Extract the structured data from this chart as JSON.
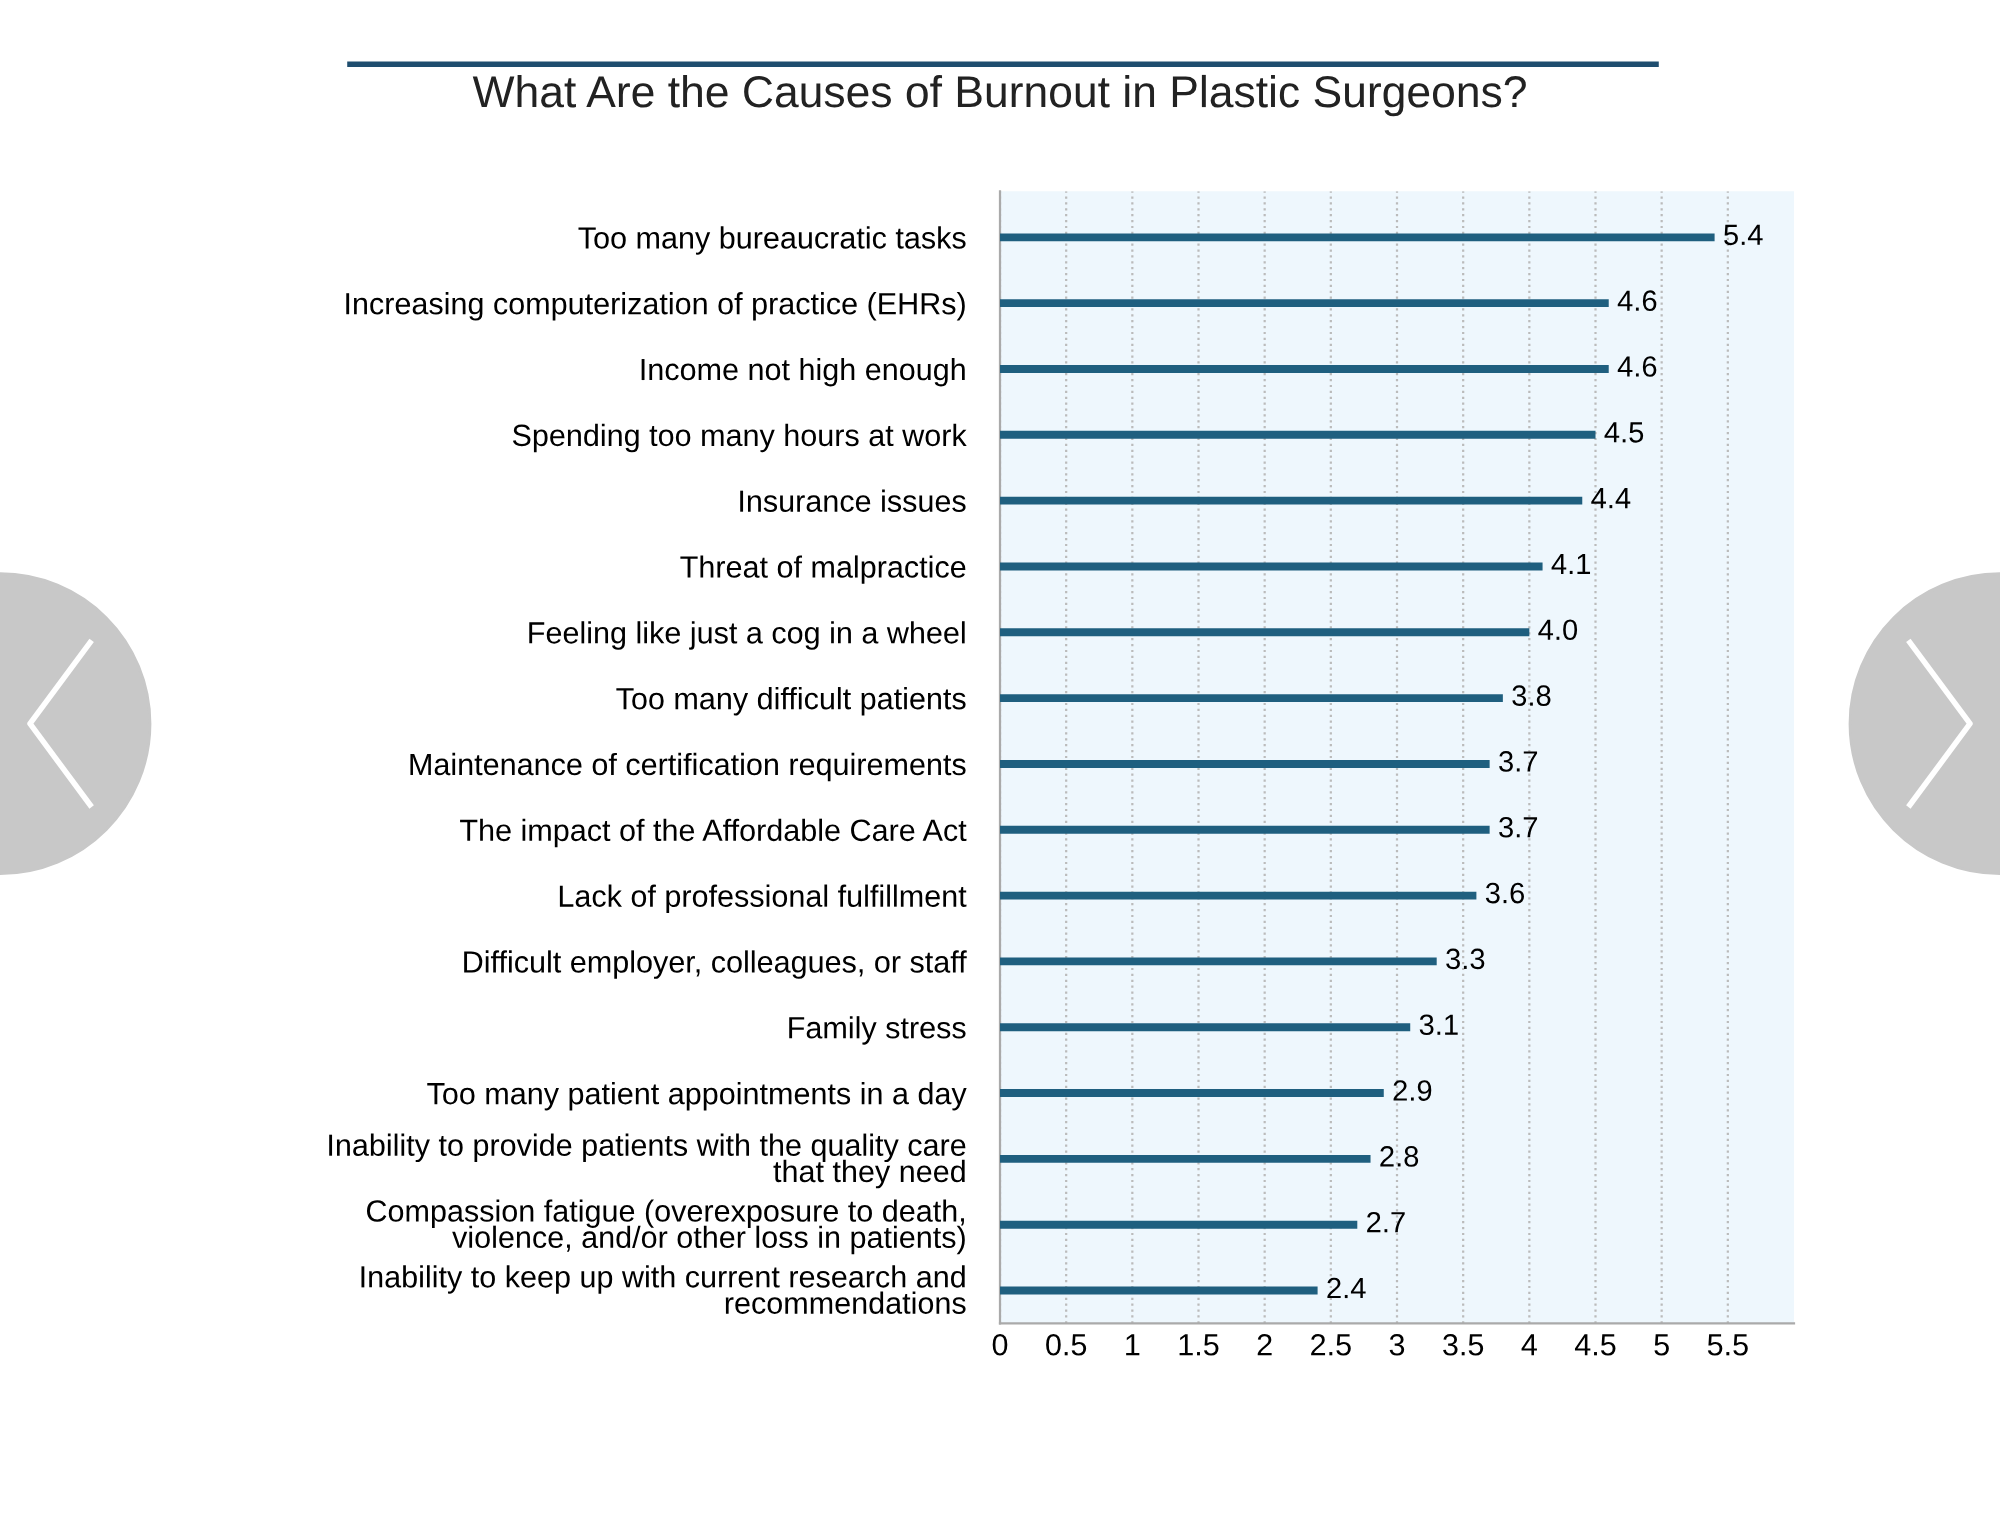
{
  "chart_data": {
    "type": "bar",
    "orientation": "horizontal",
    "title": "What Are the Causes of Burnout in Plastic Surgeons?",
    "categories": [
      "Too many bureaucratic tasks",
      "Increasing computerization of practice (EHRs)",
      "Income not high enough",
      "Spending too many hours at work",
      "Insurance issues",
      "Threat of malpractice",
      "Feeling like just a cog in a wheel",
      "Too many difficult patients",
      "Maintenance of certification requirements",
      "The impact of the Affordable Care Act",
      "Lack of professional fulfillment",
      "Difficult employer, colleagues, or staff",
      "Family stress",
      "Too many patient appointments in a day",
      "Inability to provide patients with the quality care\nthat they need",
      "Compassion fatigue (overexposure to death,\nviolence, and/or other loss in patients)",
      "Inability to keep up with current research and\nrecommendations"
    ],
    "values": [
      5.4,
      4.6,
      4.6,
      4.5,
      4.4,
      4.1,
      4.0,
      3.8,
      3.7,
      3.7,
      3.6,
      3.3,
      3.1,
      2.9,
      2.8,
      2.7,
      2.4
    ],
    "color": "#1f5f7f",
    "value_labels": [
      "5.4",
      "4.6",
      "4.6",
      "4.5",
      "4.4",
      "4.1",
      "4.0",
      "3.8",
      "3.7",
      "3.7",
      "3.6",
      "3.3",
      "3.1",
      "2.9",
      "2.8",
      "2.7",
      "2.4"
    ],
    "xlim": [
      0,
      6
    ],
    "xticks": [
      0,
      0.5,
      1,
      1.5,
      2,
      2.5,
      3,
      3.5,
      4,
      4.5,
      5,
      5.5
    ],
    "grid": "x"
  }
}
